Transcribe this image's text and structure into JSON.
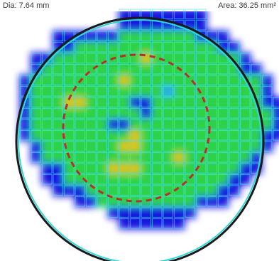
{
  "header": {
    "dia_text": "Dia: 7.64 mm",
    "area_text": "Area: 36.25 mm²"
  },
  "palette": {
    "background": "#ffffff",
    "grid_line": "#46e4ff",
    "low": "#1414e0",
    "mid": "#2aa8f4",
    "normal": "#2ed24a",
    "high": "#d9c51c",
    "outer_ring": "#1a1a1a",
    "outer_ring_inner": "#2fd8d8",
    "dashed_ring": "#b8302b"
  },
  "heatmap": {
    "legend": [
      "B = blue",
      "C = cyan",
      "G = green",
      "Y = yellow",
      ". = empty"
    ],
    "rows": [
      "..........BBBBBBBB........",
      "..........BBBBBBBB........",
      "....BBBBBBGGGGGGGBBB......",
      "....BBGGGGGGGGGGGGGBB.....",
      "..BBGGGGGGGGYGGGGGGGGB....",
      "..BGGGGGGGGGGGGGGGGGGBB...",
      ".BGGGGGGGGYGGGGGGGGGGGGB..",
      ".BGGGGGGGGGGGGCGGGGGGGGB..",
      ".BGGGYYGGGGBBGGGGGGGGGGBB.",
      ".BGGGGGGGGGGBGGGGGGGGGGGB.",
      ".BGGGGGGGBBGGGGGGGGGGGGGB.",
      ".BGGGGGGGGGYGGGGGGGGGGGBB.",
      "..BGGGGGGGYYGGGGGGGGGGGB..",
      "..BGGGGGGGGGGGGYGGGGGGB...",
      "...BBGGGGYYYGGGGGGGGGBB...",
      "...BBGGGGGGGGGGGGGGGBB....",
      "....BBBGGGGGGGGGGGGBB.....",
      "......BBGGGGGGGGGBBB......",
      ".........BBBBBBBB.........",
      "..........BBBBBB.........."
    ]
  },
  "overlays": {
    "outer_circle": "measurement-circle",
    "inner_circle": "dashed-reference-circle"
  }
}
